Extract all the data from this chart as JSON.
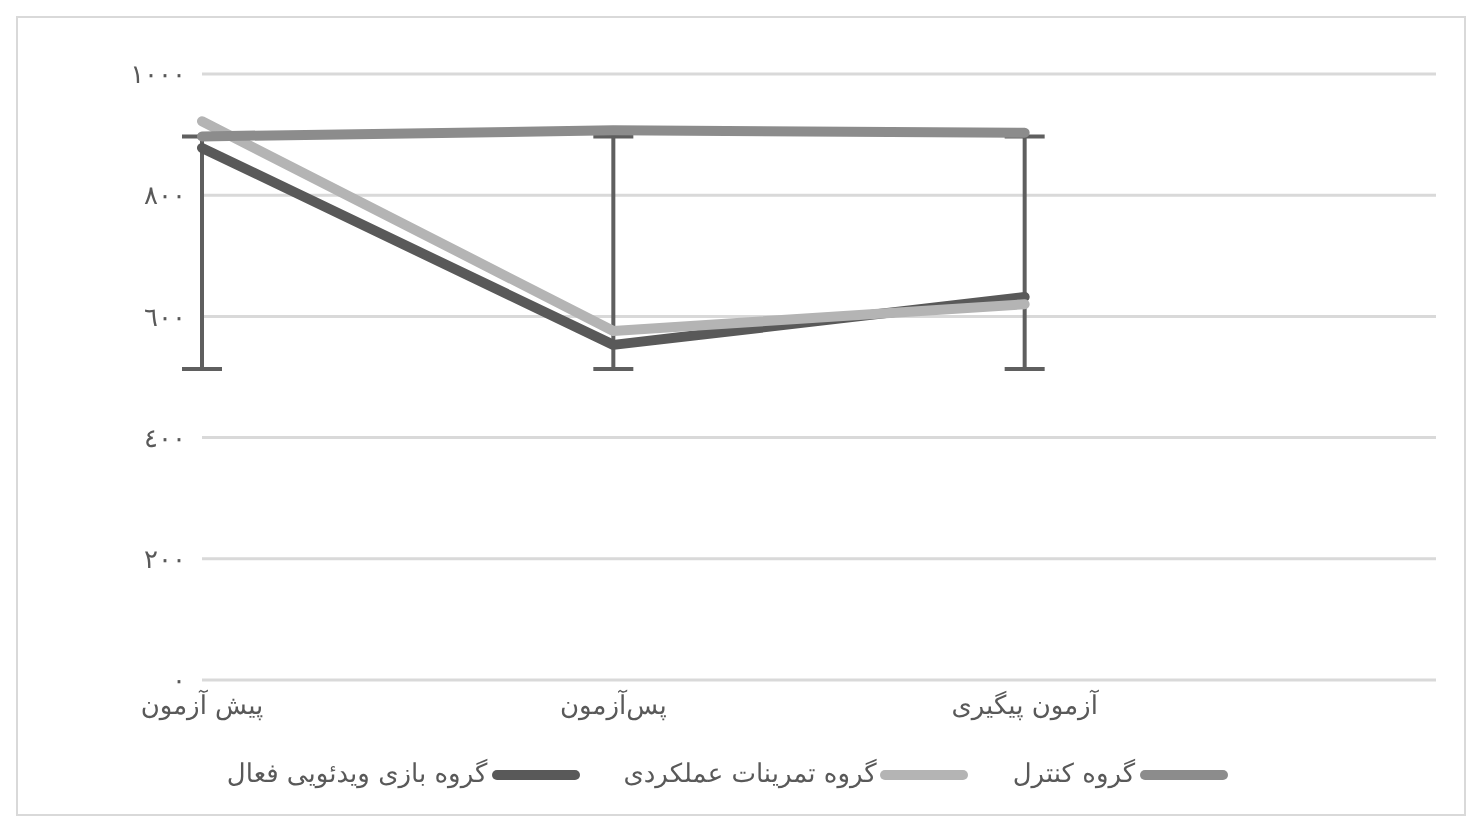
{
  "chart_data": {
    "type": "line",
    "categories": [
      "پیش آزمون",
      "پس‌آزمون",
      "آزمون پیگیری",
      null
    ],
    "series": [
      {
        "name": "گروه بازی ویدئویی فعال",
        "color": "#595959",
        "values": [
          878,
          553,
          632,
          null
        ],
        "errors": [
          [
            513,
            897
          ],
          [
            513,
            897
          ],
          [
            513,
            897
          ],
          null
        ]
      },
      {
        "name": "گروه تمرینات عملکردی",
        "color": "#b4b4b4",
        "values": [
          922,
          576,
          620,
          null
        ]
      },
      {
        "name": "گروه کنترل",
        "color": "#8c8c8c",
        "values": [
          897,
          907,
          903,
          null
        ]
      }
    ],
    "ylim": [
      0,
      1000
    ],
    "yticks": [
      {
        "value": 0,
        "label": "٠"
      },
      {
        "value": 200,
        "label": "٢٠٠"
      },
      {
        "value": 400,
        "label": "٤٠٠"
      },
      {
        "value": 600,
        "label": "٦٠٠"
      },
      {
        "value": 800,
        "label": "٨٠٠"
      },
      {
        "value": 1000,
        "label": "١٠٠٠"
      }
    ],
    "grid": "y",
    "legend": "bottom",
    "marker": "none",
    "line_style": "solid"
  }
}
